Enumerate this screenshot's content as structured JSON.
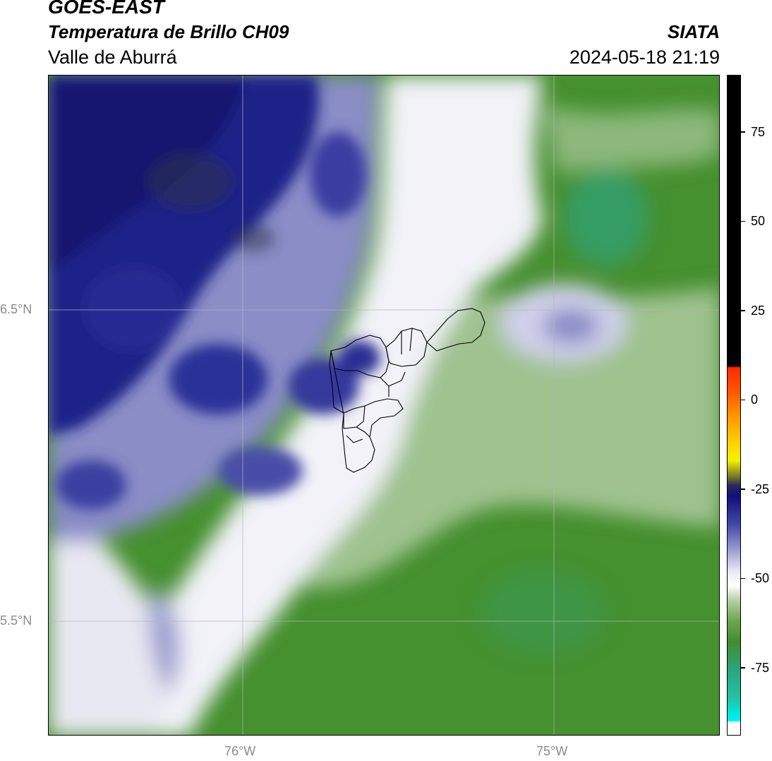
{
  "header": {
    "satellite": "GOES-EAST",
    "product": "Temperatura de Brillo CH09",
    "region": "Valle de Aburrá",
    "agency": "SIATA",
    "datetime": "2024-05-18 21:19"
  },
  "map": {
    "lat_labels": [
      "6.5°N",
      "5.5°N"
    ],
    "lon_labels": [
      "76°W",
      "75°W"
    ],
    "grid": true,
    "overlay": "Valle de Aburrá municipal boundaries",
    "colors": {
      "cold_deep": "#0e1170",
      "cold_mid": "#3b3f9e",
      "cold_light": "#8f92c8",
      "white": "#ffffff",
      "green_light": "#a9c79a",
      "green_mid": "#5f9a45",
      "green_dark": "#3e8a2b",
      "teal": "#2aa677"
    }
  },
  "colorbar": {
    "tick_labels": [
      "75",
      "50",
      "25",
      "0",
      "-25",
      "-50",
      "-75"
    ],
    "tick_values": [
      75,
      50,
      25,
      0,
      -25,
      -50,
      -75
    ],
    "range": [
      -94,
      91
    ]
  }
}
